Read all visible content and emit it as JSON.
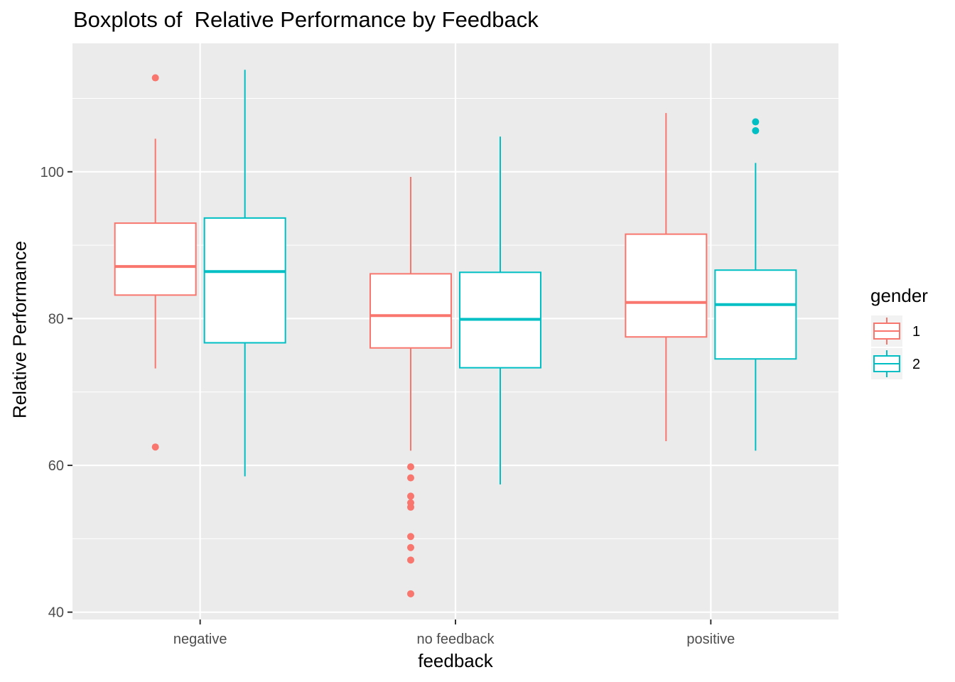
{
  "chart_data": {
    "type": "boxplot",
    "title": "Boxplots of  Relative Performance by Feedback",
    "xlabel": "feedback",
    "ylabel": "Relative Performance",
    "categories": [
      "negative",
      "no feedback",
      "positive"
    ],
    "ylim": [
      39,
      117.5
    ],
    "yticks": [
      40,
      60,
      80,
      100
    ],
    "grid": true,
    "legend": {
      "title": "gender",
      "position": "right"
    },
    "series": [
      {
        "name": "1",
        "color": "#F8766D",
        "boxes": [
          {
            "category": "negative",
            "lower_whisker": 73.2,
            "q1": 83.2,
            "median": 87.1,
            "q3": 93.0,
            "upper_whisker": 104.5,
            "outliers": [
              62.5,
              112.8
            ]
          },
          {
            "category": "no feedback",
            "lower_whisker": 62.0,
            "q1": 76.0,
            "median": 80.4,
            "q3": 86.1,
            "upper_whisker": 99.3,
            "outliers": [
              59.8,
              58.3,
              55.8,
              54.9,
              54.3,
              50.3,
              48.8,
              47.1,
              42.5
            ]
          },
          {
            "category": "positive",
            "lower_whisker": 63.3,
            "q1": 77.5,
            "median": 82.2,
            "q3": 91.5,
            "upper_whisker": 108.0,
            "outliers": []
          }
        ]
      },
      {
        "name": "2",
        "color": "#00BFC4",
        "boxes": [
          {
            "category": "negative",
            "lower_whisker": 58.5,
            "q1": 76.7,
            "median": 86.4,
            "q3": 93.7,
            "upper_whisker": 113.9,
            "outliers": []
          },
          {
            "category": "no feedback",
            "lower_whisker": 57.4,
            "q1": 73.3,
            "median": 79.9,
            "q3": 86.3,
            "upper_whisker": 104.8,
            "outliers": []
          },
          {
            "category": "positive",
            "lower_whisker": 62.0,
            "q1": 74.5,
            "median": 81.9,
            "q3": 86.6,
            "upper_whisker": 101.2,
            "outliers": [
              105.6,
              106.8
            ]
          }
        ]
      }
    ]
  }
}
